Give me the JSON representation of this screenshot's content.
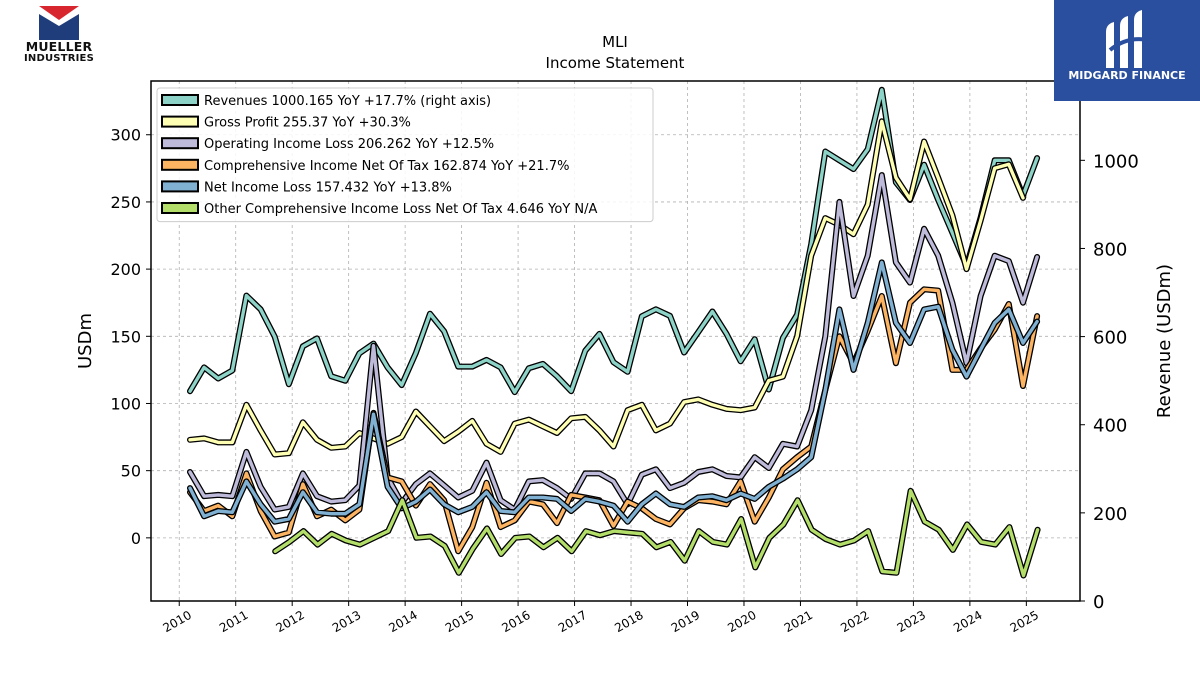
{
  "logos": {
    "left_line1": "MUELLER",
    "left_line2": "INDUSTRIES",
    "right_brand": "MIDGARD FINANCE"
  },
  "chart_data": {
    "type": "line",
    "title": "MLI",
    "subtitle": "Income Statement",
    "ylabel": "USDm",
    "ylabel_right": "Revenue (USDm)",
    "ylim": [
      -47,
      340
    ],
    "ylim_right": [
      0,
      1180
    ],
    "yticks": [
      0,
      50,
      100,
      150,
      200,
      250,
      300
    ],
    "yticks_right": [
      0,
      200,
      400,
      600,
      800,
      1000
    ],
    "xlim": [
      2009.5,
      2025.95
    ],
    "xticks": [
      2010,
      2011,
      2012,
      2013,
      2014,
      2015,
      2016,
      2017,
      2018,
      2019,
      2020,
      2021,
      2022,
      2023,
      2024,
      2025
    ],
    "grid": true,
    "legend_position": "top-left",
    "series": [
      {
        "name": "Revenues",
        "legend": "Revenues  1000.165 YoY +17.7% (right axis)",
        "color": "#8dd3c7",
        "axis": "right",
        "x_start": 2010.19,
        "x_step": 0.25,
        "values": [
          476,
          530,
          505,
          523,
          693,
          662,
          600,
          492,
          578,
          596,
          510,
          500,
          562,
          584,
          530,
          490,
          563,
          652,
          612,
          532,
          532,
          547,
          530,
          474,
          528,
          538,
          510,
          476,
          568,
          606,
          542,
          520,
          646,
          662,
          647,
          564,
          610,
          657,
          606,
          544,
          594,
          480,
          597,
          650,
          810,
          1020,
          1000,
          980,
          1025,
          1160,
          950,
          910,
          990,
          910,
          835,
          760,
          870,
          1000,
          1000,
          920,
          1005
        ]
      },
      {
        "name": "Gross Profit",
        "legend": "Gross Profit  255.37 YoY +30.3%",
        "color": "#ffffb3",
        "axis": "left",
        "x_start": 2010.19,
        "x_step": 0.25,
        "values": [
          73,
          74,
          71,
          71,
          99,
          80,
          62,
          63,
          86,
          73,
          67,
          68,
          78,
          74,
          70,
          75,
          94,
          83,
          72,
          79,
          87,
          70,
          64,
          85,
          88,
          83,
          78,
          89,
          90,
          80,
          68,
          95,
          99,
          80,
          85,
          101,
          103,
          99,
          96,
          95,
          97,
          117,
          120,
          150,
          210,
          238,
          233,
          226,
          248,
          310,
          268,
          252,
          295,
          268,
          240,
          200,
          236,
          275,
          278,
          253
        ]
      },
      {
        "name": "Operating Income Loss",
        "legend": "Operating Income Loss  206.262 YoY +12.5%",
        "color": "#bebada",
        "axis": "left",
        "x_start": 2010.19,
        "x_step": 0.25,
        "values": [
          49,
          31,
          32,
          31,
          64,
          38,
          21,
          23,
          48,
          31,
          27,
          28,
          39,
          143,
          45,
          26,
          40,
          48,
          39,
          30,
          35,
          56,
          28,
          21,
          42,
          43,
          37,
          29,
          48,
          48,
          42,
          25,
          47,
          51,
          37,
          41,
          49,
          51,
          46,
          45,
          60,
          52,
          70,
          68,
          95,
          150,
          250,
          180,
          210,
          270,
          205,
          190,
          230,
          210,
          175,
          130,
          180,
          210,
          206,
          175,
          209
        ]
      },
      {
        "name": "Comprehensive Income Net Of Tax",
        "legend": "Comprehensive Income Net Of Tax  162.874 YoY +21.7%",
        "color": "#fdb462",
        "axis": "left",
        "x_start": 2010.19,
        "x_step": 0.25,
        "values": [
          34,
          20,
          24,
          16,
          48,
          20,
          1,
          4,
          40,
          16,
          21,
          13,
          21,
          93,
          45,
          42,
          24,
          40,
          28,
          -10,
          8,
          41,
          8,
          13,
          27,
          25,
          11,
          32,
          30,
          28,
          9,
          27,
          22,
          14,
          10,
          22,
          28,
          27,
          25,
          42,
          12,
          30,
          51,
          60,
          68,
          110,
          150,
          130,
          154,
          180,
          130,
          175,
          185,
          184,
          125,
          125,
          141,
          155,
          174,
          113,
          165
        ]
      },
      {
        "name": "Net Income Loss",
        "legend": "Net Income Loss  157.432 YoY +13.8%",
        "color": "#80b1d3",
        "axis": "left",
        "x_start": 2010.19,
        "x_step": 0.25,
        "values": [
          37,
          16,
          20,
          19,
          42,
          25,
          12,
          14,
          34,
          19,
          18,
          18,
          25,
          92,
          38,
          22,
          27,
          36,
          25,
          19,
          23,
          34,
          20,
          19,
          30,
          30,
          29,
          20,
          29,
          27,
          24,
          12,
          25,
          33,
          25,
          23,
          30,
          31,
          28,
          33,
          29,
          38,
          44,
          51,
          60,
          110,
          170,
          125,
          160,
          205,
          160,
          145,
          170,
          172,
          140,
          120,
          140,
          160,
          170,
          145,
          161
        ]
      },
      {
        "name": "Other Comprehensive Income Loss Net Of Tax",
        "legend": "Other Comprehensive Income Loss Net Of Tax  4.646 YoY N/A",
        "color": "#b3de69",
        "axis": "left",
        "x_start": 2011.7,
        "x_step": 0.25,
        "values": [
          -10,
          -3,
          5,
          -5,
          3,
          -2,
          -5,
          0,
          5,
          28,
          0,
          1,
          -6,
          -26,
          -8,
          7,
          -12,
          0,
          1,
          -7,
          0,
          -10,
          5,
          2,
          5,
          4,
          3,
          -7,
          -3,
          -17,
          5,
          -3,
          -5,
          14,
          -22,
          0,
          10,
          28,
          6,
          -1,
          -5,
          -2,
          5,
          -25,
          -26,
          35,
          12,
          6,
          -9,
          10,
          -3,
          -5,
          8,
          -28,
          6
        ]
      }
    ]
  }
}
